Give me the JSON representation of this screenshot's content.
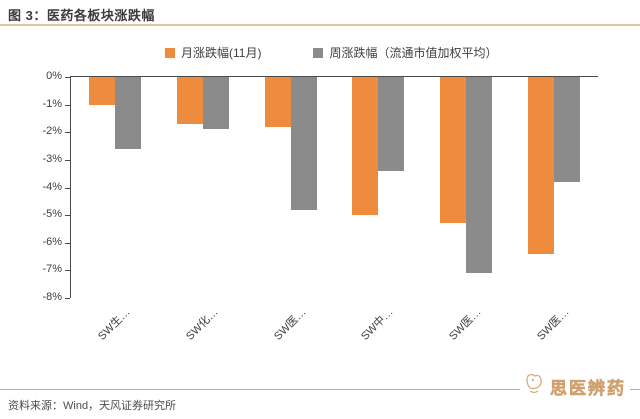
{
  "header": {
    "title": "图 3：医药各板块涨跌幅"
  },
  "chart_data": {
    "type": "bar",
    "categories": [
      "SW生…",
      "SW化…",
      "SW医…",
      "SW中…",
      "SW医…",
      "SW医…"
    ],
    "series": [
      {
        "name": "月涨跌幅(11月)",
        "color": "#ef8b3d",
        "values": [
          -1.0,
          -1.7,
          -1.8,
          -5.0,
          -5.3,
          -6.4
        ]
      },
      {
        "name": "周涨跌幅（流通市值加权平均）",
        "color": "#8b8b8b",
        "values": [
          -2.6,
          -1.9,
          -4.8,
          -3.4,
          -7.1,
          -3.8
        ]
      }
    ],
    "title": "医药各板块涨跌幅",
    "xlabel": "",
    "ylabel": "",
    "ylim": [
      -8,
      0
    ],
    "ytick_step": 1,
    "ytick_labels": [
      "0%",
      "-1%",
      "-2%",
      "-3%",
      "-4%",
      "-5%",
      "-6%",
      "-7%",
      "-8%"
    ],
    "grid": false,
    "legend_position": "top"
  },
  "colors": {
    "header_rule": "#e4c79f",
    "footer_rule": "#ee9f6e",
    "axis": "#4a4a4a",
    "month_bar": "#ef8b3d",
    "week_bar": "#8b8b8b",
    "logo": "#d8ab7f"
  },
  "footer": {
    "source": "资料来源：Wind，天风证券研究所",
    "logo_text": "思医辨药"
  }
}
